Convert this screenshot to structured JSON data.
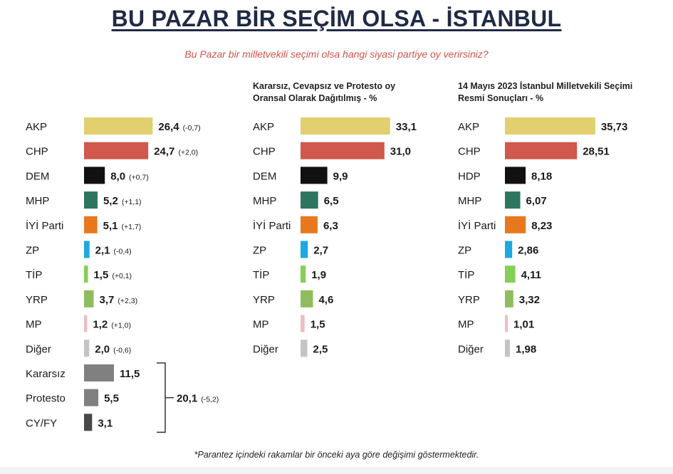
{
  "header": {
    "title": "BU PAZAR BİR SEÇİM OLSA - İSTANBUL",
    "subtitle": "Bu Pazar bir milletvekili seçimi olsa hangi siyasi partiye oy verirsiniz?"
  },
  "footnote": "*Parantez içindeki rakamlar bir önceki aya göre değişimi göstermektedir.",
  "colors": {
    "AKP": "#e2cf6f",
    "CHP": "#d0584d",
    "DEM": "#111111",
    "MHP": "#2e7560",
    "IYI": "#e8781d",
    "ZP": "#1ca8e0",
    "TIP": "#84cf55",
    "YRP": "#8fbd5e",
    "MP": "#ebbec2",
    "Diger": "#c4c4c4",
    "Kararsiz": "#808080",
    "Protesto": "#808080",
    "CYFY": "#484848"
  },
  "chart_data": [
    {
      "type": "bar",
      "title": "",
      "categories": [
        "AKP",
        "CHP",
        "DEM",
        "MHP",
        "İYİ Parti",
        "ZP",
        "TİP",
        "YRP",
        "MP",
        "Diğer",
        "Kararsız",
        "Protesto",
        "CY/FY"
      ],
      "values": [
        26.4,
        24.7,
        8.0,
        5.2,
        5.1,
        2.1,
        1.5,
        3.7,
        1.2,
        2.0,
        11.5,
        5.5,
        3.1
      ],
      "value_labels": [
        "26,4",
        "24,7",
        "8,0",
        "5,2",
        "5,1",
        "2,1",
        "1,5",
        "3,7",
        "1,2",
        "2,0",
        "11,5",
        "5,5",
        "3,1"
      ],
      "change_labels": [
        "(-0,7)",
        "(+2,0)",
        "(+0,7)",
        "(+1,1)",
        "(+1,7)",
        "(-0,4)",
        "(+0,1)",
        "(+2,3)",
        "(+1,0)",
        "(-0,6)",
        "",
        "",
        ""
      ],
      "color_keys": [
        "AKP",
        "CHP",
        "DEM",
        "MHP",
        "IYI",
        "ZP",
        "TIP",
        "YRP",
        "MP",
        "Diger",
        "Kararsiz",
        "Protesto",
        "CYFY"
      ],
      "group_total": {
        "value": 20.1,
        "label": "20,1",
        "change": "(-5,2)"
      }
    },
    {
      "type": "bar",
      "title": "Kararsız, Cevapsız ve Protesto oy Oransal Olarak Dağıtılmış - %",
      "categories": [
        "AKP",
        "CHP",
        "DEM",
        "MHP",
        "İYİ Parti",
        "ZP",
        "TİP",
        "YRP",
        "MP",
        "Diğer"
      ],
      "values": [
        33.1,
        31.0,
        9.9,
        6.5,
        6.3,
        2.7,
        1.9,
        4.6,
        1.5,
        2.5
      ],
      "value_labels": [
        "33,1",
        "31,0",
        "9,9",
        "6,5",
        "6,3",
        "2,7",
        "1,9",
        "4,6",
        "1,5",
        "2,5"
      ],
      "color_keys": [
        "AKP",
        "CHP",
        "DEM",
        "MHP",
        "IYI",
        "ZP",
        "TIP",
        "YRP",
        "MP",
        "Diger"
      ]
    },
    {
      "type": "bar",
      "title": "14 Mayıs 2023 İstanbul Milletvekili Seçimi Resmi Sonuçları - %",
      "categories": [
        "AKP",
        "CHP",
        "HDP",
        "MHP",
        "İYİ Parti",
        "ZP",
        "TİP",
        "YRP",
        "MP",
        "Diğer"
      ],
      "values": [
        35.73,
        28.51,
        8.18,
        6.07,
        8.23,
        2.86,
        4.11,
        3.32,
        1.01,
        1.98
      ],
      "value_labels": [
        "35,73",
        "28,51",
        "8,18",
        "6,07",
        "8,23",
        "2,86",
        "4,11",
        "3,32",
        "1,01",
        "1,98"
      ],
      "color_keys": [
        "AKP",
        "CHP",
        "DEM",
        "MHP",
        "IYI",
        "ZP",
        "TIP",
        "YRP",
        "MP",
        "Diger"
      ]
    }
  ]
}
